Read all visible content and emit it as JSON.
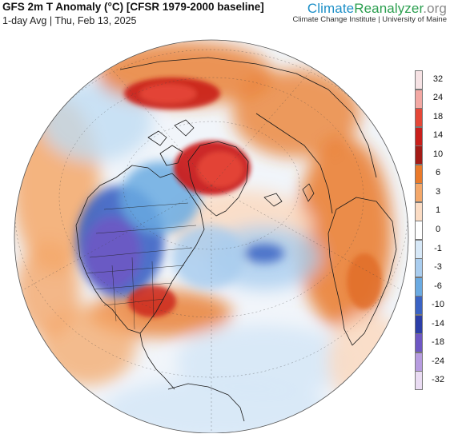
{
  "header": {
    "title": "GFS 2m T Anomaly (°C) [CFSR 1979-2000 baseline]",
    "subtitle": "1-day Avg | Thu, Feb 13, 2025"
  },
  "brand": {
    "name_part1": "Climate",
    "name_part2": "Reanalyzer",
    "name_part3": ".org",
    "affiliation": "Climate Change Institute | University of Maine"
  },
  "colorbar": {
    "levels": [
      {
        "label": "32",
        "color": "#f6e2e4"
      },
      {
        "label": "24",
        "color": "#f3a8a3"
      },
      {
        "label": "18",
        "color": "#e54737"
      },
      {
        "label": "14",
        "color": "#c91f1b"
      },
      {
        "label": "10",
        "color": "#a31b16"
      },
      {
        "label": "6",
        "color": "#ea7a2a"
      },
      {
        "label": "3",
        "color": "#f4a86a"
      },
      {
        "label": "1",
        "color": "#fbdcc4"
      },
      {
        "label": "0",
        "color": "#ffffff"
      },
      {
        "label": "-1",
        "color": "#d7e8f7"
      },
      {
        "label": "-3",
        "color": "#a9cdef"
      },
      {
        "label": "-6",
        "color": "#6aaae2"
      },
      {
        "label": "-10",
        "color": "#3a63c4"
      },
      {
        "label": "-14",
        "color": "#2c3ea8"
      },
      {
        "label": "-18",
        "color": "#6e57c4"
      },
      {
        "label": "-24",
        "color": "#b79ce0"
      },
      {
        "label": "-32",
        "color": "#eadcf3"
      }
    ]
  },
  "map": {
    "projection": "orthographic",
    "ocean_color": "#f3f7fb",
    "land_outline": "#1a1a1a"
  }
}
